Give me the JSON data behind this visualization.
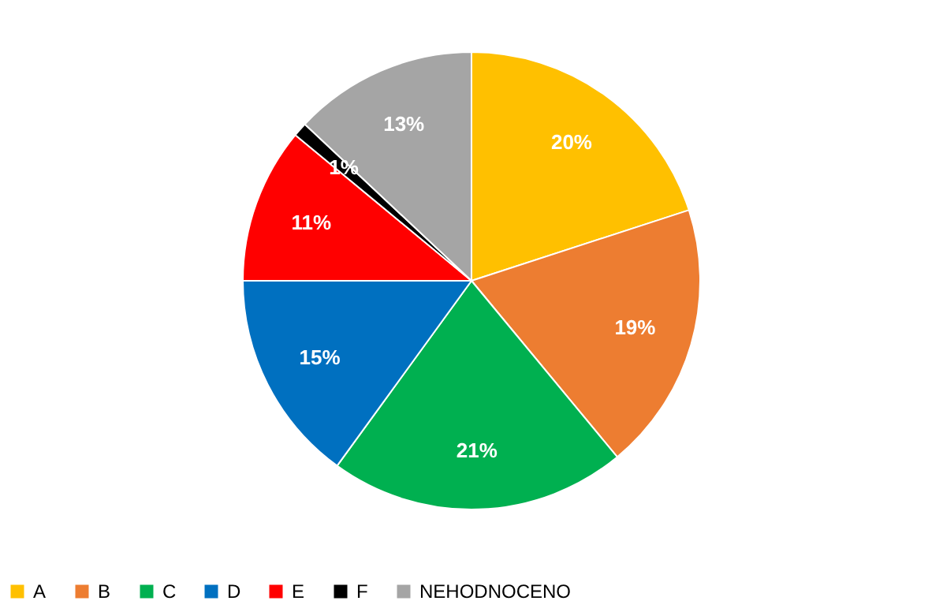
{
  "chart_data": {
    "type": "pie",
    "categories": [
      "A",
      "B",
      "C",
      "D",
      "E",
      "F",
      "NEHODNOCENO"
    ],
    "values": [
      20,
      19,
      21,
      15,
      11,
      1,
      13
    ],
    "colors": [
      "#ffc000",
      "#ed7d31",
      "#00b050",
      "#0070c0",
      "#ff0000",
      "#000000",
      "#a5a5a5"
    ],
    "value_labels": [
      "20%",
      "19%",
      "21%",
      "15%",
      "11%",
      "1%",
      "13%"
    ],
    "legend": "bottom"
  }
}
